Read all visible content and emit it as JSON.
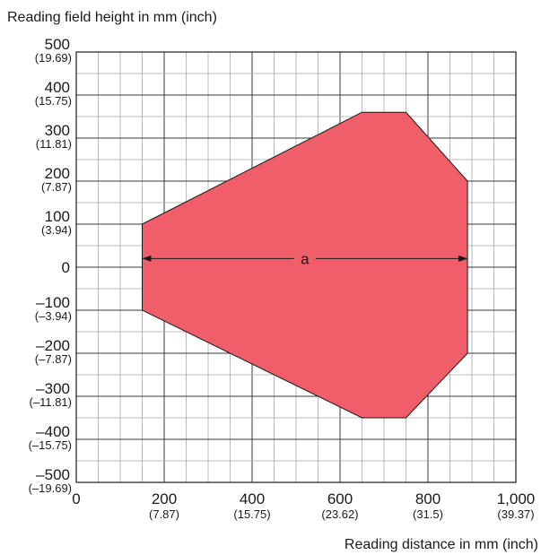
{
  "chart_data": {
    "type": "area",
    "ylabel": "Reading field height in mm (inch)",
    "xlabel": "Reading distance in mm (inch)",
    "xlim": [
      0,
      1000
    ],
    "ylim": [
      -500,
      500
    ],
    "grid": true,
    "x_ticks": [
      {
        "value": 0,
        "label": "0",
        "sub": ""
      },
      {
        "value": 200,
        "label": "200",
        "sub": "(7.87)"
      },
      {
        "value": 400,
        "label": "400",
        "sub": "(15.75)"
      },
      {
        "value": 600,
        "label": "600",
        "sub": "(23.62)"
      },
      {
        "value": 800,
        "label": "800",
        "sub": "(31.5)"
      },
      {
        "value": 1000,
        "label": "1,000",
        "sub": "(39.37)"
      }
    ],
    "y_ticks": [
      {
        "value": 500,
        "label": "500",
        "sub": "(19.69)"
      },
      {
        "value": 400,
        "label": "400",
        "sub": "(15.75)"
      },
      {
        "value": 300,
        "label": "300",
        "sub": "(11.81)"
      },
      {
        "value": 200,
        "label": "200",
        "sub": "(7.87)"
      },
      {
        "value": 100,
        "label": "100",
        "sub": "(3.94)"
      },
      {
        "value": 0,
        "label": "0",
        "sub": ""
      },
      {
        "value": -100,
        "label": "–100",
        "sub": "(–3.94)"
      },
      {
        "value": -200,
        "label": "–200",
        "sub": "(–7.87)"
      },
      {
        "value": -300,
        "label": "–300",
        "sub": "(–11.81)"
      },
      {
        "value": -400,
        "label": "–400",
        "sub": "(–15.75)"
      },
      {
        "value": -500,
        "label": "–500",
        "sub": "(–19.69)"
      }
    ],
    "region": {
      "points": [
        [
          150,
          100
        ],
        [
          650,
          360
        ],
        [
          750,
          360
        ],
        [
          890,
          200
        ],
        [
          890,
          -200
        ],
        [
          750,
          -350
        ],
        [
          650,
          -350
        ],
        [
          150,
          -100
        ]
      ],
      "fill": "#ef5e69",
      "stroke": "#1a1a1a"
    },
    "annotation": {
      "label": "a",
      "from": [
        150,
        20
      ],
      "to": [
        890,
        20
      ]
    }
  }
}
